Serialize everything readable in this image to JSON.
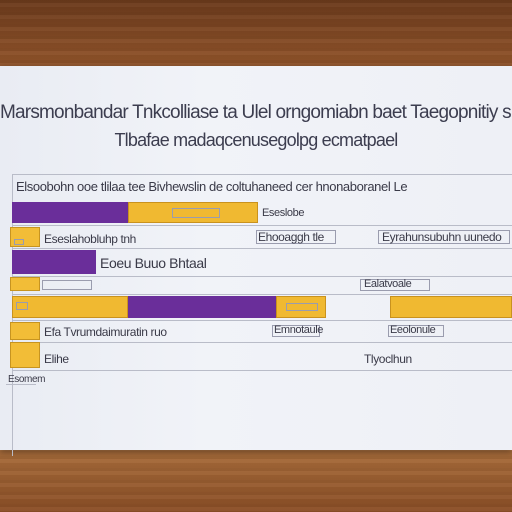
{
  "scene": {
    "colors": {
      "wood": "#9a5a2e",
      "sheet": "#eef0f6",
      "purple": "#6a2e9a",
      "gold": "#f0b931",
      "text": "#3c3d4f"
    }
  },
  "document": {
    "title": "Marsmonbandar Tnkcolliase ta Ulel orngomiabn baet Taegopnitiy si",
    "subtitle": "Tlbafae madaqcenusegolpg ecmatpael",
    "header_row": "Elsoobohn ooe tlilaa tee Bivhewslin de coltuhaneed cer hnonaboranel Le",
    "rows": [
      {
        "texts": [
          "Eseslobe"
        ]
      },
      {
        "texts": [
          "Eseslahobluhp tnh",
          "Ehooaggh  tle",
          "Eyrahunsubuhn uunedo"
        ]
      },
      {
        "texts": [
          "Eoeu Buuo Bhtaal"
        ]
      },
      {
        "texts": [
          "Ealatvoale"
        ]
      },
      {
        "texts": [
          "Efa Tvrumdaimuratin ruo",
          "Emnotaule",
          "Eeolonule"
        ]
      },
      {
        "texts": [
          "Elihe",
          "Tlyoclhun"
        ]
      }
    ],
    "footer": "Esomem"
  }
}
